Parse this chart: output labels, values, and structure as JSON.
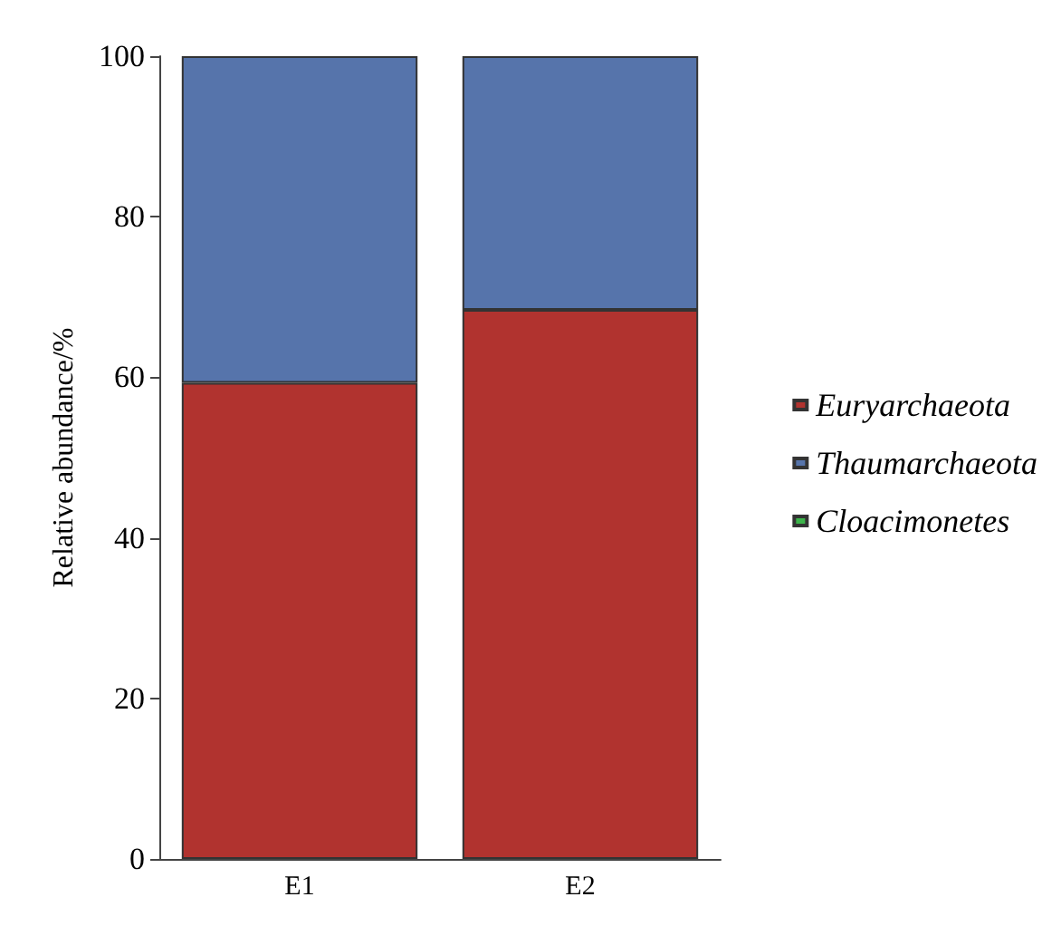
{
  "chart_data": {
    "type": "bar",
    "stacked": true,
    "ylabel": "Relative abundance/%",
    "categories": [
      "E1",
      "E2"
    ],
    "series": [
      {
        "name": "Euryarchaeota",
        "color": "#b1332f",
        "values": [
          59.3,
          68.4
        ]
      },
      {
        "name": "Thaumarchaeota",
        "color": "#5674ab",
        "values": [
          40.7,
          31.6
        ]
      },
      {
        "name": "Cloacimonetes",
        "color": "#3cb44a",
        "values": [
          0,
          0
        ]
      }
    ],
    "ylim": [
      0,
      100
    ],
    "yticks": [
      0,
      20,
      40,
      60,
      80,
      100
    ],
    "grid": false,
    "legend": "right"
  }
}
